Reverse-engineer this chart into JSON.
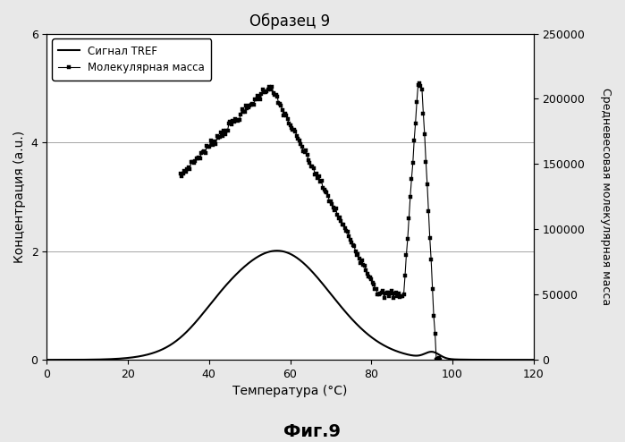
{
  "title": "Образец 9",
  "xlabel": "Температура (°C)",
  "ylabel_left": "Концентрация (a.u.)",
  "ylabel_right": "Средневесовая молекулярная масса",
  "fig_label": "Фиг.9",
  "xlim": [
    0,
    120
  ],
  "ylim_left": [
    0.0,
    6.0
  ],
  "ylim_right": [
    0,
    250000
  ],
  "yticks_left": [
    0.0,
    2.0,
    4.0,
    6.0
  ],
  "yticks_right": [
    0,
    50000,
    100000,
    150000,
    200000,
    250000
  ],
  "xticks": [
    0,
    20,
    40,
    60,
    80,
    100,
    120
  ],
  "background_color": "#e8e8e8",
  "plot_bg_color": "#ffffff",
  "tref_color": "#000000",
  "mw_color": "#000000",
  "legend_labels": [
    "Сигнал TREF",
    "Молекулярная масса"
  ]
}
